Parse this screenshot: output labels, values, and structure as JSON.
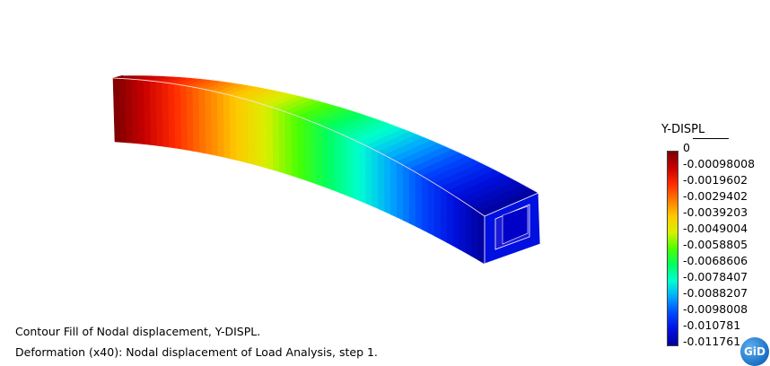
{
  "legend": {
    "title": "Y-DISPL",
    "values": [
      "0",
      "-0.00098008",
      "-0.0019602",
      "-0.0029402",
      "-0.0039203",
      "-0.0049004",
      "-0.0058805",
      "-0.0068606",
      "-0.0078407",
      "-0.0088207",
      "-0.0098008",
      "-0.010781",
      "-0.011761"
    ]
  },
  "captions": {
    "line1": "Contour Fill of Nodal displacement, Y-DISPL.",
    "line2": "Deformation (x40): Nodal displacement of Load Analysis, step 1."
  },
  "logo": {
    "text": "GiD"
  },
  "colors": {
    "scale": [
      "#7a0000",
      "#c80000",
      "#ff2a00",
      "#ff7a00",
      "#ffc800",
      "#d8f000",
      "#4cff00",
      "#00ff60",
      "#00ffd0",
      "#00a8ff",
      "#0048ff",
      "#0010e0",
      "#00009a"
    ]
  }
}
